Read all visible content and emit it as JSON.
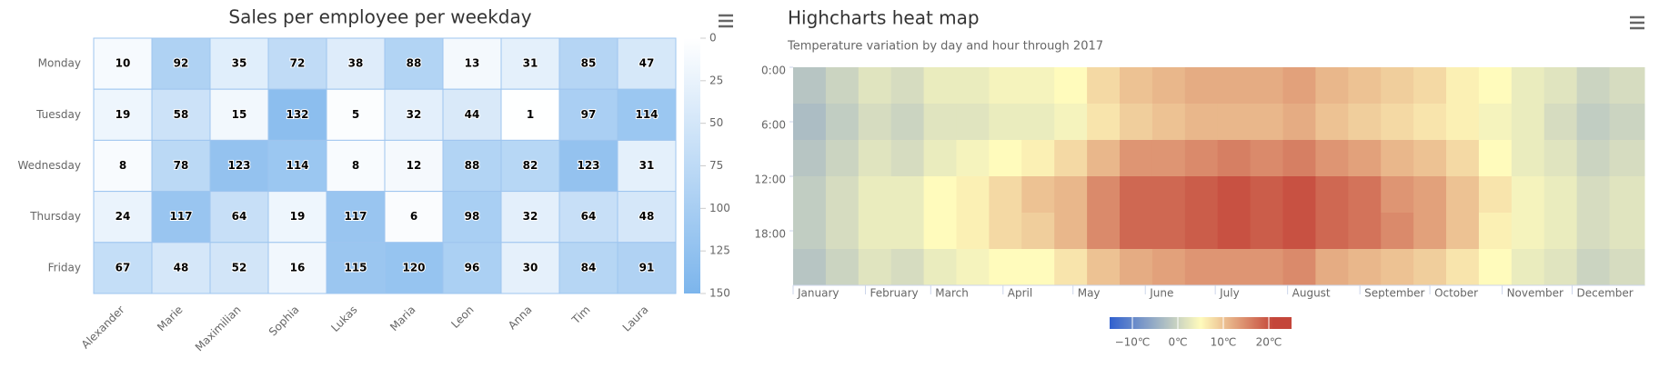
{
  "chart_data": [
    {
      "type": "heatmap",
      "title": "Sales per employee per weekday",
      "x_categories": [
        "Alexander",
        "Marie",
        "Maximilian",
        "Sophia",
        "Lukas",
        "Maria",
        "Leon",
        "Anna",
        "Tim",
        "Laura"
      ],
      "y_categories": [
        "Monday",
        "Tuesday",
        "Wednesday",
        "Thursday",
        "Friday"
      ],
      "values": [
        [
          10,
          92,
          35,
          72,
          38,
          88,
          13,
          31,
          85,
          47
        ],
        [
          19,
          58,
          15,
          132,
          5,
          32,
          44,
          1,
          97,
          114
        ],
        [
          8,
          78,
          123,
          114,
          8,
          12,
          88,
          82,
          123,
          31
        ],
        [
          24,
          117,
          64,
          19,
          117,
          6,
          98,
          32,
          64,
          48
        ],
        [
          67,
          48,
          52,
          16,
          115,
          120,
          96,
          30,
          84,
          91
        ]
      ],
      "min_color": "#ffffff",
      "max_color": "#7cb5ec",
      "colorlim": [
        0,
        150
      ],
      "colorticks": [
        0,
        25,
        50,
        75,
        100,
        125,
        150
      ]
    },
    {
      "type": "heatmap-time",
      "title": "Highcharts heat map",
      "subtitle": "Temperature variation by day and hour through 2017",
      "x": [
        0,
        14,
        28,
        42,
        56,
        70,
        84,
        98,
        112,
        126,
        140,
        154,
        168,
        182,
        196,
        210,
        224,
        238,
        252,
        266,
        280,
        294,
        308,
        322,
        336,
        350
      ],
      "xlim": [
        0,
        365
      ],
      "xticks": [
        {
          "value": 0,
          "label": "January"
        },
        {
          "value": 31,
          "label": "February"
        },
        {
          "value": 59,
          "label": "March"
        },
        {
          "value": 90,
          "label": "April"
        },
        {
          "value": 120,
          "label": "May"
        },
        {
          "value": 151,
          "label": "June"
        },
        {
          "value": 181,
          "label": "July"
        },
        {
          "value": 212,
          "label": "August"
        },
        {
          "value": 243,
          "label": "September"
        },
        {
          "value": 273,
          "label": "October"
        },
        {
          "value": 304,
          "label": "November"
        },
        {
          "value": 334,
          "label": "December"
        }
      ],
      "y": [
        0,
        4,
        8,
        12,
        16,
        20
      ],
      "ylim": [
        0,
        24
      ],
      "yticks": [
        {
          "value": 0,
          "label": "0:00"
        },
        {
          "value": 6,
          "label": "6:00"
        },
        {
          "value": 12,
          "label": "12:00"
        },
        {
          "value": 18,
          "label": "18:00"
        }
      ],
      "values": [
        [
          -2,
          0,
          2,
          1,
          3,
          3,
          4,
          4,
          5,
          8,
          10,
          11,
          12,
          12,
          12,
          13,
          11,
          10,
          9,
          8,
          6,
          5,
          3,
          2,
          0,
          1
        ],
        [
          -3,
          -1,
          1,
          0,
          2,
          2,
          3,
          3,
          4,
          7,
          9,
          10,
          11,
          11,
          11,
          12,
          10,
          9,
          8,
          7,
          6,
          4,
          3,
          1,
          -1,
          0
        ],
        [
          -2,
          0,
          2,
          1,
          3,
          4,
          5,
          6,
          8,
          11,
          14,
          14,
          15,
          16,
          15,
          16,
          14,
          13,
          11,
          10,
          8,
          5,
          3,
          2,
          0,
          1
        ],
        [
          -1,
          1,
          3,
          3,
          5,
          6,
          8,
          10,
          11,
          15,
          18,
          18,
          19,
          20,
          19,
          20,
          18,
          17,
          14,
          13,
          10,
          7,
          4,
          3,
          1,
          2
        ],
        [
          -1,
          1,
          3,
          3,
          5,
          6,
          8,
          9,
          11,
          15,
          18,
          18,
          19,
          20,
          19,
          20,
          18,
          17,
          15,
          13,
          10,
          6,
          4,
          3,
          1,
          2
        ],
        [
          -2,
          0,
          2,
          1,
          3,
          4,
          5,
          5,
          7,
          10,
          12,
          13,
          14,
          14,
          14,
          15,
          12,
          11,
          10,
          9,
          7,
          5,
          3,
          2,
          0,
          1
        ]
      ],
      "colorlim": [
        -15,
        25
      ],
      "color_stops": [
        [
          0,
          "#3060cf"
        ],
        [
          0.5,
          "#fffbbc"
        ],
        [
          0.9,
          "#c4463a"
        ],
        [
          1,
          "#c4463a"
        ]
      ],
      "colorticks": [
        {
          "value": -10,
          "label": "−10℃"
        },
        {
          "value": 0,
          "label": "0℃"
        },
        {
          "value": 10,
          "label": "10℃"
        },
        {
          "value": 20,
          "label": "20℃"
        }
      ]
    }
  ]
}
